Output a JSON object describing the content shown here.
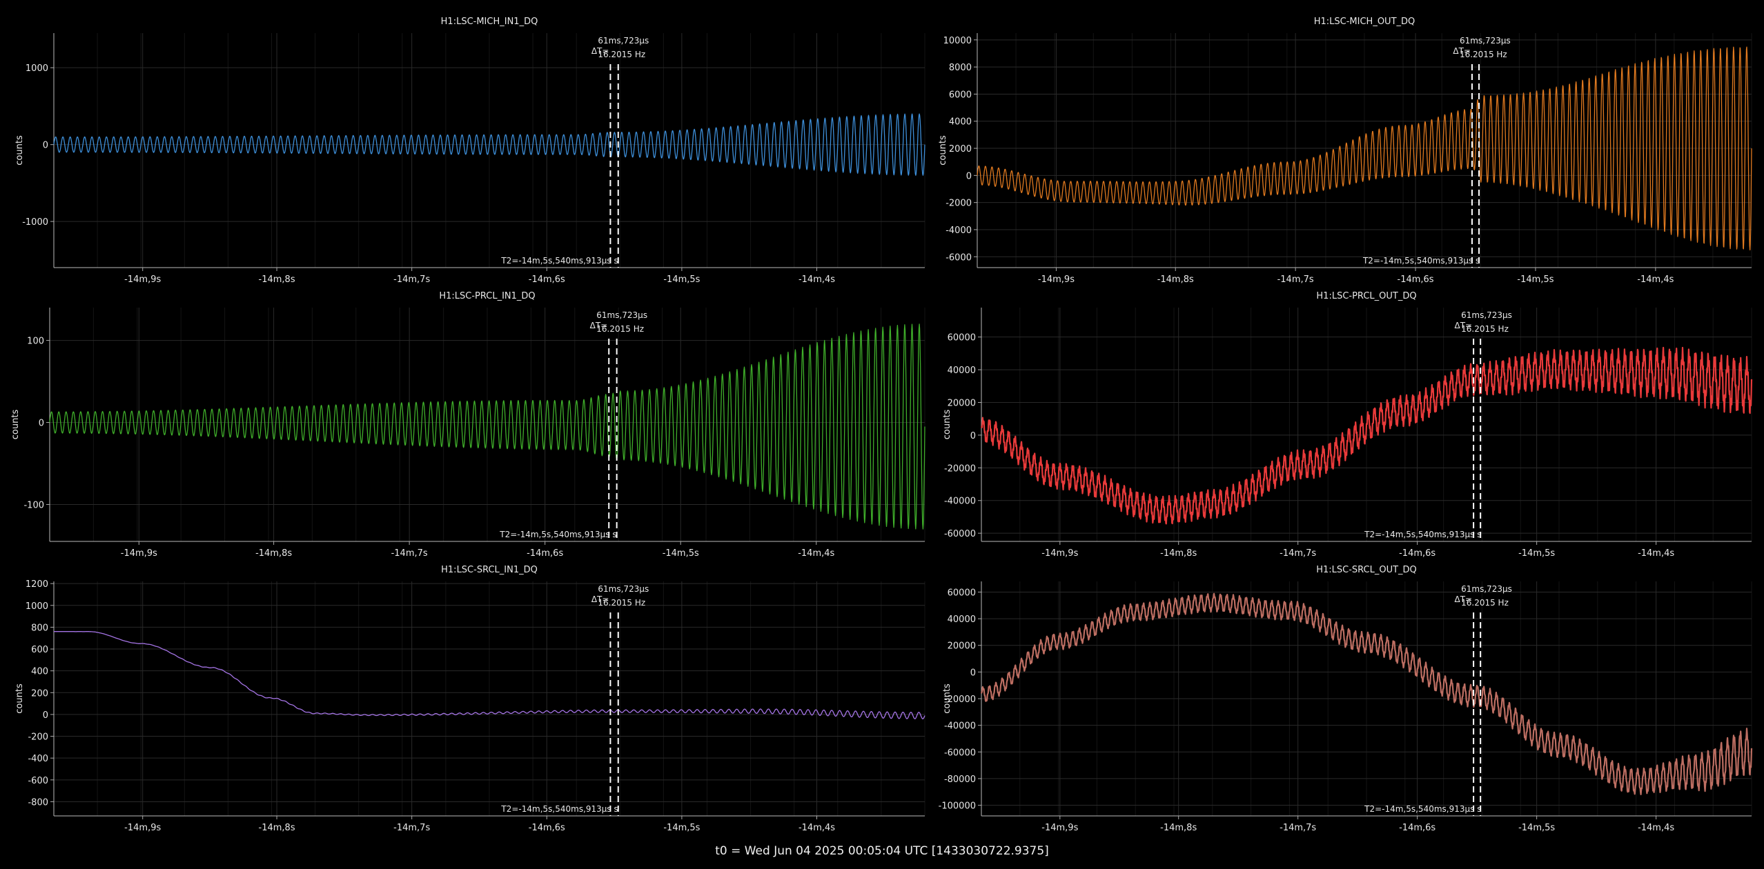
{
  "footer": "t0 = Wed Jun 04 2025 00:05:04 UTC [1433030722.9375]",
  "cursor": {
    "delta_label": "ΔT=",
    "delta_time": "61ms,723μs",
    "delta_freq": "16.2015 Hz",
    "t2_label": "T2=-14m,5s,540ms,913μs s"
  },
  "x_ticks": [
    "-14m,9s",
    "-14m,8s",
    "-14m,7s",
    "-14m,6s",
    "-14m,5s",
    "-14m,4s"
  ],
  "chart_data": [
    {
      "type": "line",
      "title": "H1:LSC-MICH_IN1_DQ",
      "ylabel": "counts",
      "color": "#3d8ed8",
      "yticks": [
        1000,
        0,
        -1000
      ],
      "ylim": [
        -1600,
        1450
      ],
      "envelope": {
        "center": [
          [
            0,
            0
          ],
          [
            1,
            0
          ]
        ],
        "amp": [
          [
            0,
            100
          ],
          [
            0.6,
            130
          ],
          [
            0.64,
            160
          ],
          [
            1,
            400
          ]
        ]
      },
      "cycles": 120
    },
    {
      "type": "line",
      "title": "H1:LSC-MICH_OUT_DQ",
      "ylabel": "counts",
      "color": "#e0791f",
      "yticks": [
        10000,
        8000,
        6000,
        4000,
        2000,
        0,
        -2000,
        -4000,
        -6000
      ],
      "ylim": [
        -6800,
        10500
      ],
      "envelope": {
        "center": [
          [
            0,
            0
          ],
          [
            0.12,
            -1200
          ],
          [
            0.26,
            -1300
          ],
          [
            0.4,
            -200
          ],
          [
            0.55,
            1800
          ],
          [
            0.64,
            2700
          ],
          [
            0.8,
            2500
          ],
          [
            1,
            2000
          ]
        ],
        "amp": [
          [
            0,
            700
          ],
          [
            0.2,
            800
          ],
          [
            0.4,
            1200
          ],
          [
            0.55,
            1900
          ],
          [
            0.64,
            2200
          ],
          [
            0.65,
            3200
          ],
          [
            1,
            7500
          ]
        ]
      },
      "cycles": 118
    },
    {
      "type": "line",
      "title": "H1:LSC-PRCL_IN1_DQ",
      "ylabel": "counts",
      "color": "#3fae2a",
      "yticks": [
        100,
        0,
        -100
      ],
      "ylim": [
        -145,
        140
      ],
      "envelope": {
        "center": [
          [
            0,
            0
          ],
          [
            1,
            -5
          ]
        ],
        "amp": [
          [
            0,
            13
          ],
          [
            0.6,
            30
          ],
          [
            0.64,
            38
          ],
          [
            0.65,
            42
          ],
          [
            1,
            125
          ]
        ]
      },
      "cycles": 120
    },
    {
      "type": "line",
      "title": "H1:LSC-PRCL_OUT_DQ",
      "ylabel": "counts",
      "color": "#e83a3a",
      "yticks": [
        60000,
        40000,
        20000,
        0,
        -20000,
        -40000,
        -60000
      ],
      "ylim": [
        -65000,
        78000
      ],
      "envelope": {
        "center": [
          [
            0,
            3000
          ],
          [
            0.1,
            -25000
          ],
          [
            0.24,
            -46000
          ],
          [
            0.3,
            -42000
          ],
          [
            0.42,
            -18000
          ],
          [
            0.55,
            15000
          ],
          [
            0.64,
            34000
          ],
          [
            0.75,
            40000
          ],
          [
            0.88,
            38000
          ],
          [
            1,
            30000
          ]
        ],
        "amp": [
          [
            0,
            8000
          ],
          [
            0.3,
            9000
          ],
          [
            0.64,
            10000
          ],
          [
            0.7,
            12000
          ],
          [
            1,
            18000
          ]
        ]
      },
      "cycles": 120,
      "noise": 0.6
    },
    {
      "type": "line",
      "title": "H1:LSC-SRCL_IN1_DQ",
      "ylabel": "counts",
      "color": "#a574e6",
      "yticks": [
        1200,
        1000,
        800,
        600,
        400,
        200,
        0,
        -200,
        -400,
        -600,
        -800
      ],
      "ylim": [
        -930,
        1220
      ],
      "envelope": {
        "center": [
          [
            0,
            760
          ],
          [
            0.04,
            760
          ],
          [
            0.1,
            650
          ],
          [
            0.18,
            430
          ],
          [
            0.25,
            150
          ],
          [
            0.3,
            10
          ],
          [
            0.36,
            -5
          ],
          [
            0.64,
            30
          ],
          [
            0.8,
            30
          ],
          [
            1,
            -10
          ]
        ],
        "amp": [
          [
            0,
            0
          ],
          [
            0.3,
            4
          ],
          [
            0.5,
            8
          ],
          [
            0.64,
            12
          ],
          [
            1,
            30
          ]
        ]
      },
      "cycles": 110
    },
    {
      "type": "line",
      "title": "H1:LSC-SRCL_OUT_DQ",
      "ylabel": "counts",
      "color": "#bd6e62",
      "yticks": [
        60000,
        40000,
        20000,
        0,
        -20000,
        -40000,
        -60000,
        -80000,
        -100000
      ],
      "ylim": [
        -108000,
        68000
      ],
      "envelope": {
        "center": [
          [
            0,
            -17000
          ],
          [
            0.1,
            23000
          ],
          [
            0.2,
            45000
          ],
          [
            0.3,
            52000
          ],
          [
            0.4,
            46000
          ],
          [
            0.5,
            22000
          ],
          [
            0.64,
            -18000
          ],
          [
            0.75,
            -55000
          ],
          [
            0.85,
            -82000
          ],
          [
            0.93,
            -75000
          ],
          [
            1,
            -60000
          ]
        ],
        "amp": [
          [
            0,
            6000
          ],
          [
            0.3,
            7000
          ],
          [
            0.6,
            8500
          ],
          [
            0.85,
            10000
          ],
          [
            1,
            18000
          ]
        ]
      },
      "cycles": 120,
      "noise": 0.4
    }
  ]
}
